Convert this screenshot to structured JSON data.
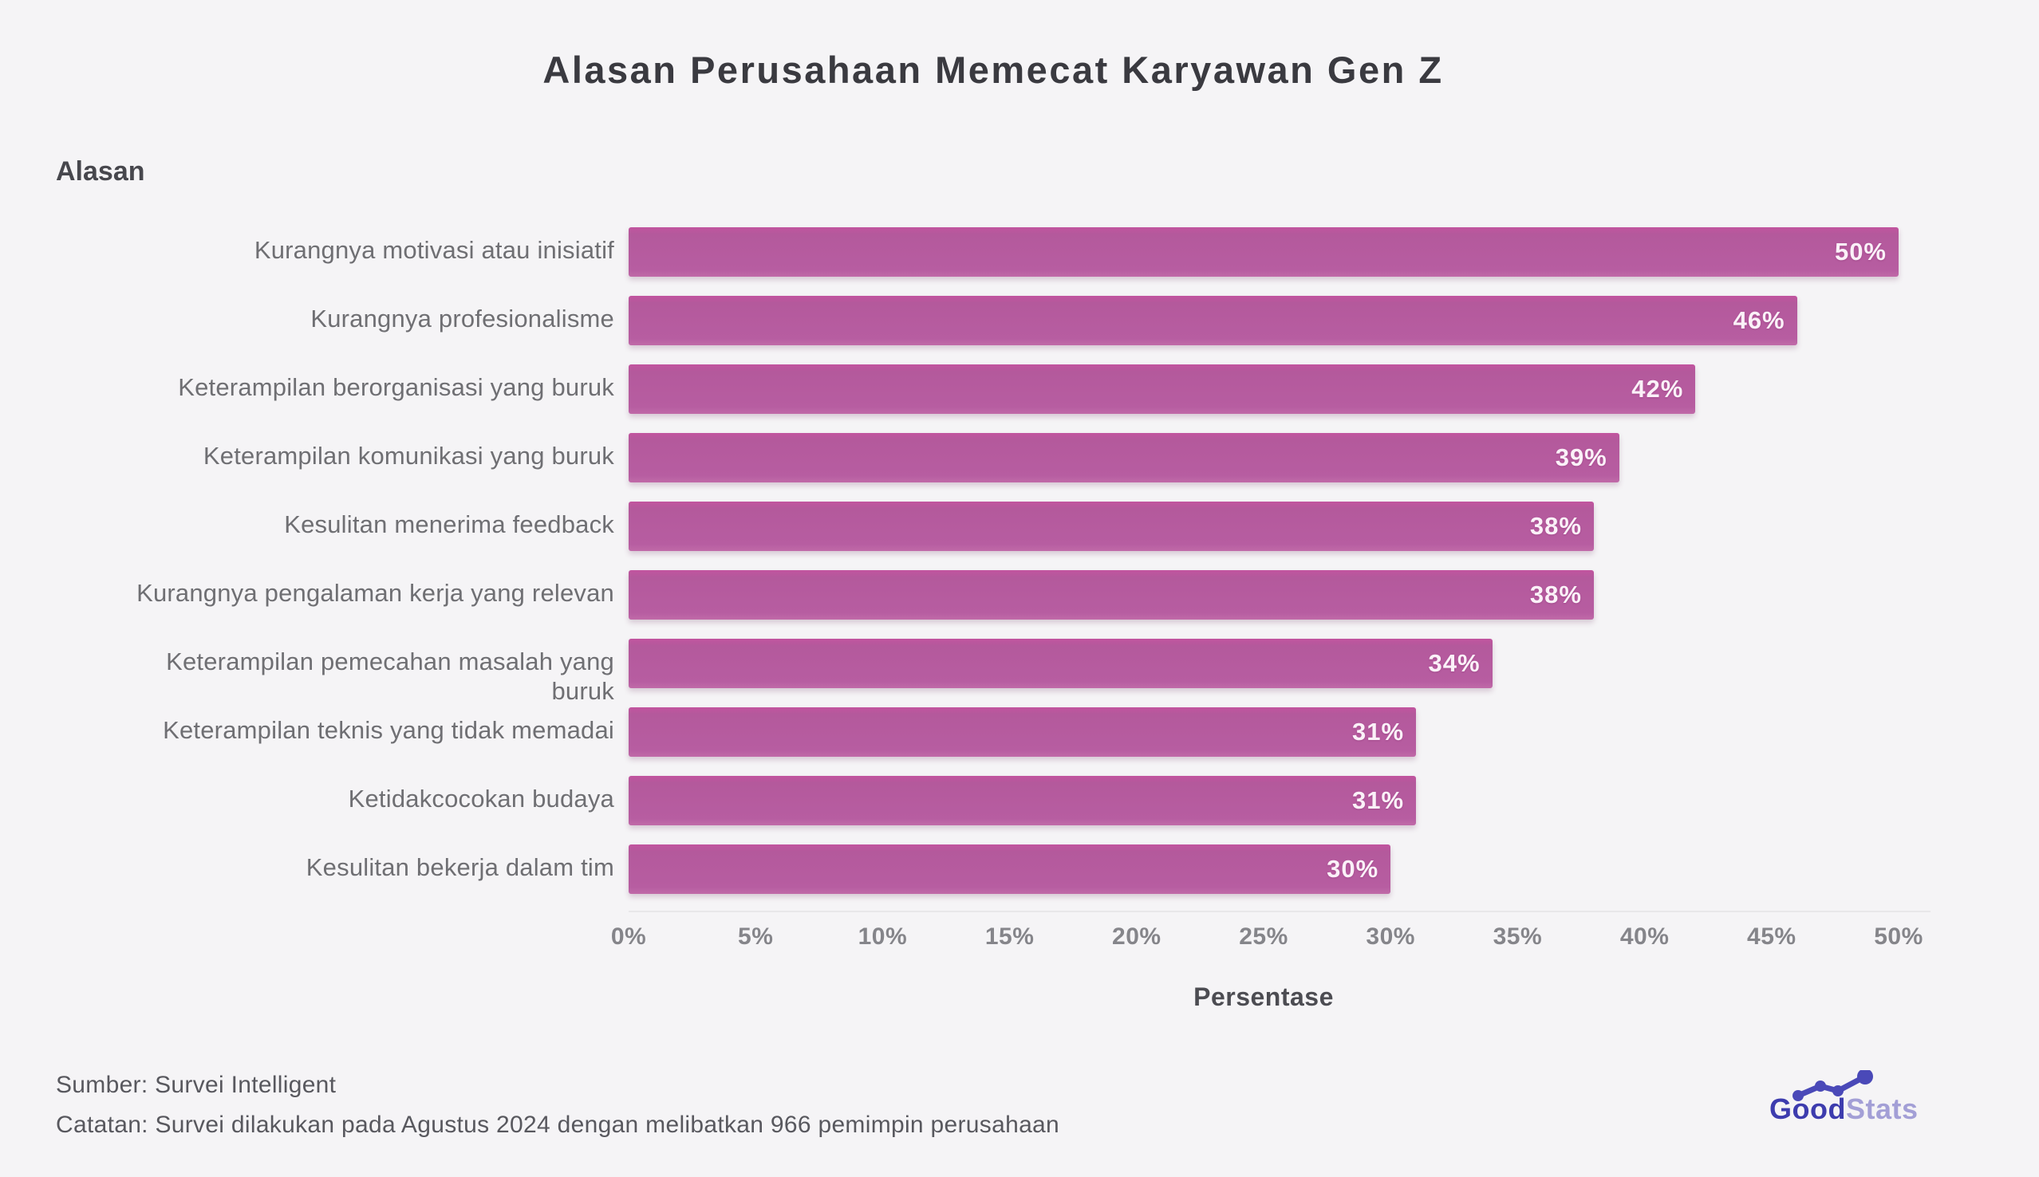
{
  "title": "Alasan Perusahaan Memecat Karyawan Gen Z",
  "chart_data": {
    "type": "bar",
    "orientation": "horizontal",
    "title": "Alasan Perusahaan Memecat Karyawan Gen Z",
    "ylabel": "Alasan",
    "xlabel": "Persentase",
    "xlim": [
      0,
      50
    ],
    "xticks": [
      "0%",
      "5%",
      "10%",
      "15%",
      "20%",
      "25%",
      "30%",
      "35%",
      "40%",
      "45%",
      "50%"
    ],
    "grid": false,
    "legend": false,
    "bar_color": "#b75da1",
    "categories": [
      "Kurangnya motivasi atau inisiatif",
      "Kurangnya profesionalisme",
      "Keterampilan berorganisasi yang buruk",
      "Keterampilan komunikasi yang buruk",
      "Kesulitan menerima feedback",
      "Kurangnya pengalaman kerja yang relevan",
      "Keterampilan pemecahan masalah yang\nburuk",
      "Keterampilan teknis yang tidak memadai",
      "Ketidakcocokan budaya",
      "Kesulitan bekerja dalam tim"
    ],
    "values": [
      50,
      46,
      42,
      39,
      38,
      38,
      34,
      31,
      31,
      30
    ],
    "value_labels": [
      "50%",
      "46%",
      "42%",
      "39%",
      "38%",
      "38%",
      "34%",
      "31%",
      "31%",
      "30%"
    ]
  },
  "footer": {
    "source": "Sumber: Survei Intelligent",
    "note": "Catatan: Survei dilakukan pada Agustus 2024 dengan melibatkan 966 pemimpin perusahaan"
  },
  "logo": {
    "part1": "Good",
    "part2": "Stats",
    "color1": "#3d3cae",
    "color2": "#a39fd6"
  }
}
